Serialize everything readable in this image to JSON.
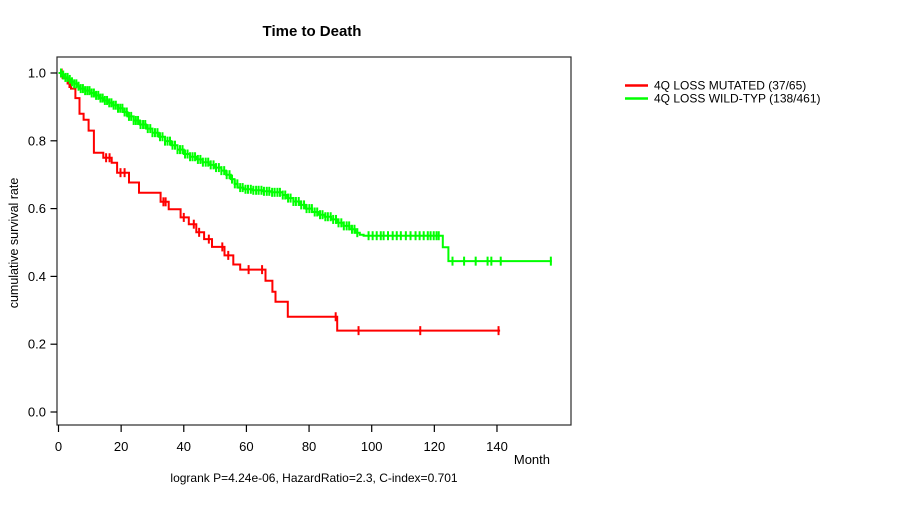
{
  "title": "Time to Death",
  "footer": "logrank P=4.24e-06, HazardRatio=2.3, C-index=0.701",
  "axes": {
    "x_label": "Month",
    "y_label": "cumulative survival rate",
    "x_ticks": [
      0,
      20,
      40,
      60,
      80,
      100,
      120,
      140
    ],
    "y_ticks": [
      "0.0",
      "0.2",
      "0.4",
      "0.6",
      "0.8",
      "1.0"
    ]
  },
  "legend": {
    "items": [
      {
        "label": "4Q LOSS MUTATED (37/65)",
        "color": "#ff0000"
      },
      {
        "label": "4Q LOSS WILD-TYP (138/461)",
        "color": "#00ff00"
      }
    ]
  },
  "chart_data": {
    "type": "line",
    "subtype": "kaplan-meier-step",
    "title": "Time to Death",
    "xlabel": "Month",
    "ylabel": "cumulative survival rate",
    "xlim": [
      0,
      164
    ],
    "ylim": [
      0.0,
      1.0
    ],
    "grid": false,
    "legend_position": "right-outside",
    "annotation": "logrank P=4.24e-06, HazardRatio=2.3, C-index=0.701",
    "series": [
      {
        "name": "4Q LOSS MUTATED (37/65)",
        "color": "#ff0000",
        "n_events": 37,
        "n_total": 65,
        "steps": [
          [
            0,
            1.0
          ],
          [
            1.3,
            0.985
          ],
          [
            2.9,
            0.969
          ],
          [
            4,
            0.954
          ],
          [
            5.4,
            0.926
          ],
          [
            6.7,
            0.88
          ],
          [
            8,
            0.862
          ],
          [
            9.6,
            0.83
          ],
          [
            11.3,
            0.765
          ],
          [
            14.3,
            0.75
          ],
          [
            17,
            0.735
          ],
          [
            18.7,
            0.706
          ],
          [
            22.5,
            0.677
          ],
          [
            25.7,
            0.647
          ],
          [
            32.6,
            0.62
          ],
          [
            35.2,
            0.598
          ],
          [
            39,
            0.574
          ],
          [
            41.6,
            0.554
          ],
          [
            44,
            0.53
          ],
          [
            46.5,
            0.51
          ],
          [
            49,
            0.487
          ],
          [
            53,
            0.462
          ],
          [
            55.8,
            0.435
          ],
          [
            58,
            0.42
          ],
          [
            66.1,
            0.387
          ],
          [
            68.3,
            0.355
          ],
          [
            69.3,
            0.325
          ],
          [
            73.2,
            0.281
          ],
          [
            89,
            0.24
          ]
        ],
        "end_month": 141,
        "censor_months": [
          1,
          3.5,
          15.2,
          16.3,
          19.8,
          21.1,
          33.5,
          34.2,
          40,
          43.2,
          44.9,
          48,
          52.3,
          54.2,
          60.7,
          65,
          88.5,
          95.8,
          115.5,
          140.5
        ]
      },
      {
        "name": "4Q LOSS WILD-TYP (138/461)",
        "color": "#00ff00",
        "n_events": 138,
        "n_total": 461,
        "steps": [
          [
            0,
            1.0
          ],
          [
            1,
            0.994
          ],
          [
            2,
            0.987
          ],
          [
            3,
            0.981
          ],
          [
            4,
            0.974
          ],
          [
            5,
            0.968
          ],
          [
            6,
            0.961
          ],
          [
            7,
            0.954
          ],
          [
            8.5,
            0.948
          ],
          [
            10,
            0.941
          ],
          [
            11.5,
            0.934
          ],
          [
            13,
            0.926
          ],
          [
            14.5,
            0.919
          ],
          [
            16,
            0.912
          ],
          [
            17.5,
            0.905
          ],
          [
            19,
            0.896
          ],
          [
            20.5,
            0.885
          ],
          [
            22,
            0.872
          ],
          [
            24,
            0.86
          ],
          [
            26,
            0.848
          ],
          [
            28,
            0.836
          ],
          [
            30,
            0.824
          ],
          [
            32,
            0.812
          ],
          [
            34,
            0.799
          ],
          [
            36,
            0.787
          ],
          [
            38,
            0.774
          ],
          [
            40,
            0.761
          ],
          [
            42,
            0.753
          ],
          [
            44,
            0.745
          ],
          [
            46,
            0.737
          ],
          [
            48,
            0.729
          ],
          [
            50,
            0.721
          ],
          [
            52,
            0.712
          ],
          [
            53.5,
            0.7
          ],
          [
            55,
            0.687
          ],
          [
            56.2,
            0.673
          ],
          [
            57.2,
            0.662
          ],
          [
            59,
            0.657
          ],
          [
            62,
            0.654
          ],
          [
            65,
            0.651
          ],
          [
            68,
            0.648
          ],
          [
            71.5,
            0.64
          ],
          [
            73,
            0.631
          ],
          [
            75,
            0.621
          ],
          [
            77,
            0.611
          ],
          [
            79,
            0.6
          ],
          [
            81,
            0.59
          ],
          [
            83,
            0.582
          ],
          [
            85,
            0.576
          ],
          [
            87,
            0.568
          ],
          [
            89,
            0.558
          ],
          [
            91,
            0.549
          ],
          [
            93,
            0.539
          ],
          [
            94.8,
            0.529
          ],
          [
            96.2,
            0.523
          ],
          [
            97.4,
            0.52
          ],
          [
            122.7,
            0.486
          ],
          [
            124.5,
            0.445
          ]
        ],
        "end_month": 157.5,
        "censor_months": [
          0.8,
          1.5,
          2.2,
          2.9,
          3.6,
          4.3,
          5,
          5.7,
          6.4,
          7.1,
          7.8,
          8.5,
          9.2,
          9.9,
          10.6,
          11.3,
          12,
          12.7,
          13.4,
          14.1,
          14.8,
          15.5,
          16.2,
          16.9,
          17.6,
          18.3,
          19,
          19.7,
          20.4,
          21.1,
          21.8,
          22.5,
          23.2,
          24,
          24.7,
          25.4,
          26.2,
          27,
          27.7,
          28.5,
          29.3,
          30,
          30.8,
          31.6,
          32.4,
          33.2,
          34,
          34.8,
          35.6,
          36.4,
          37.2,
          38,
          38.8,
          39.6,
          40.4,
          41.2,
          42,
          42.8,
          43.6,
          44.5,
          45.3,
          46.1,
          47,
          47.8,
          48.6,
          49.5,
          50.3,
          51.2,
          52,
          52.9,
          53.7,
          54.6,
          55.4,
          56.3,
          57.1,
          58,
          58.8,
          59.7,
          60.5,
          61.4,
          62.2,
          63.1,
          63.9,
          64.8,
          65.6,
          66.5,
          67.3,
          68.2,
          69,
          69.9,
          70.7,
          71.6,
          72.4,
          73.3,
          74.1,
          75,
          75.8,
          76.7,
          77.5,
          78.4,
          79.2,
          80.1,
          80.9,
          81.8,
          82.6,
          83.5,
          84.3,
          85.2,
          86,
          86.9,
          87.7,
          88.6,
          89.4,
          90.3,
          91.1,
          92,
          92.8,
          93.7,
          94.5,
          95.4,
          99,
          100.3,
          101.6,
          102.9,
          103.8,
          105.2,
          106.7,
          108,
          109.3,
          110.9,
          112.4,
          114,
          115.3,
          116.6,
          117.9,
          118.8,
          119.8,
          120.7,
          121.4,
          125.8,
          129.5,
          133.2,
          137,
          138.2,
          141.2,
          157.2
        ]
      }
    ]
  }
}
